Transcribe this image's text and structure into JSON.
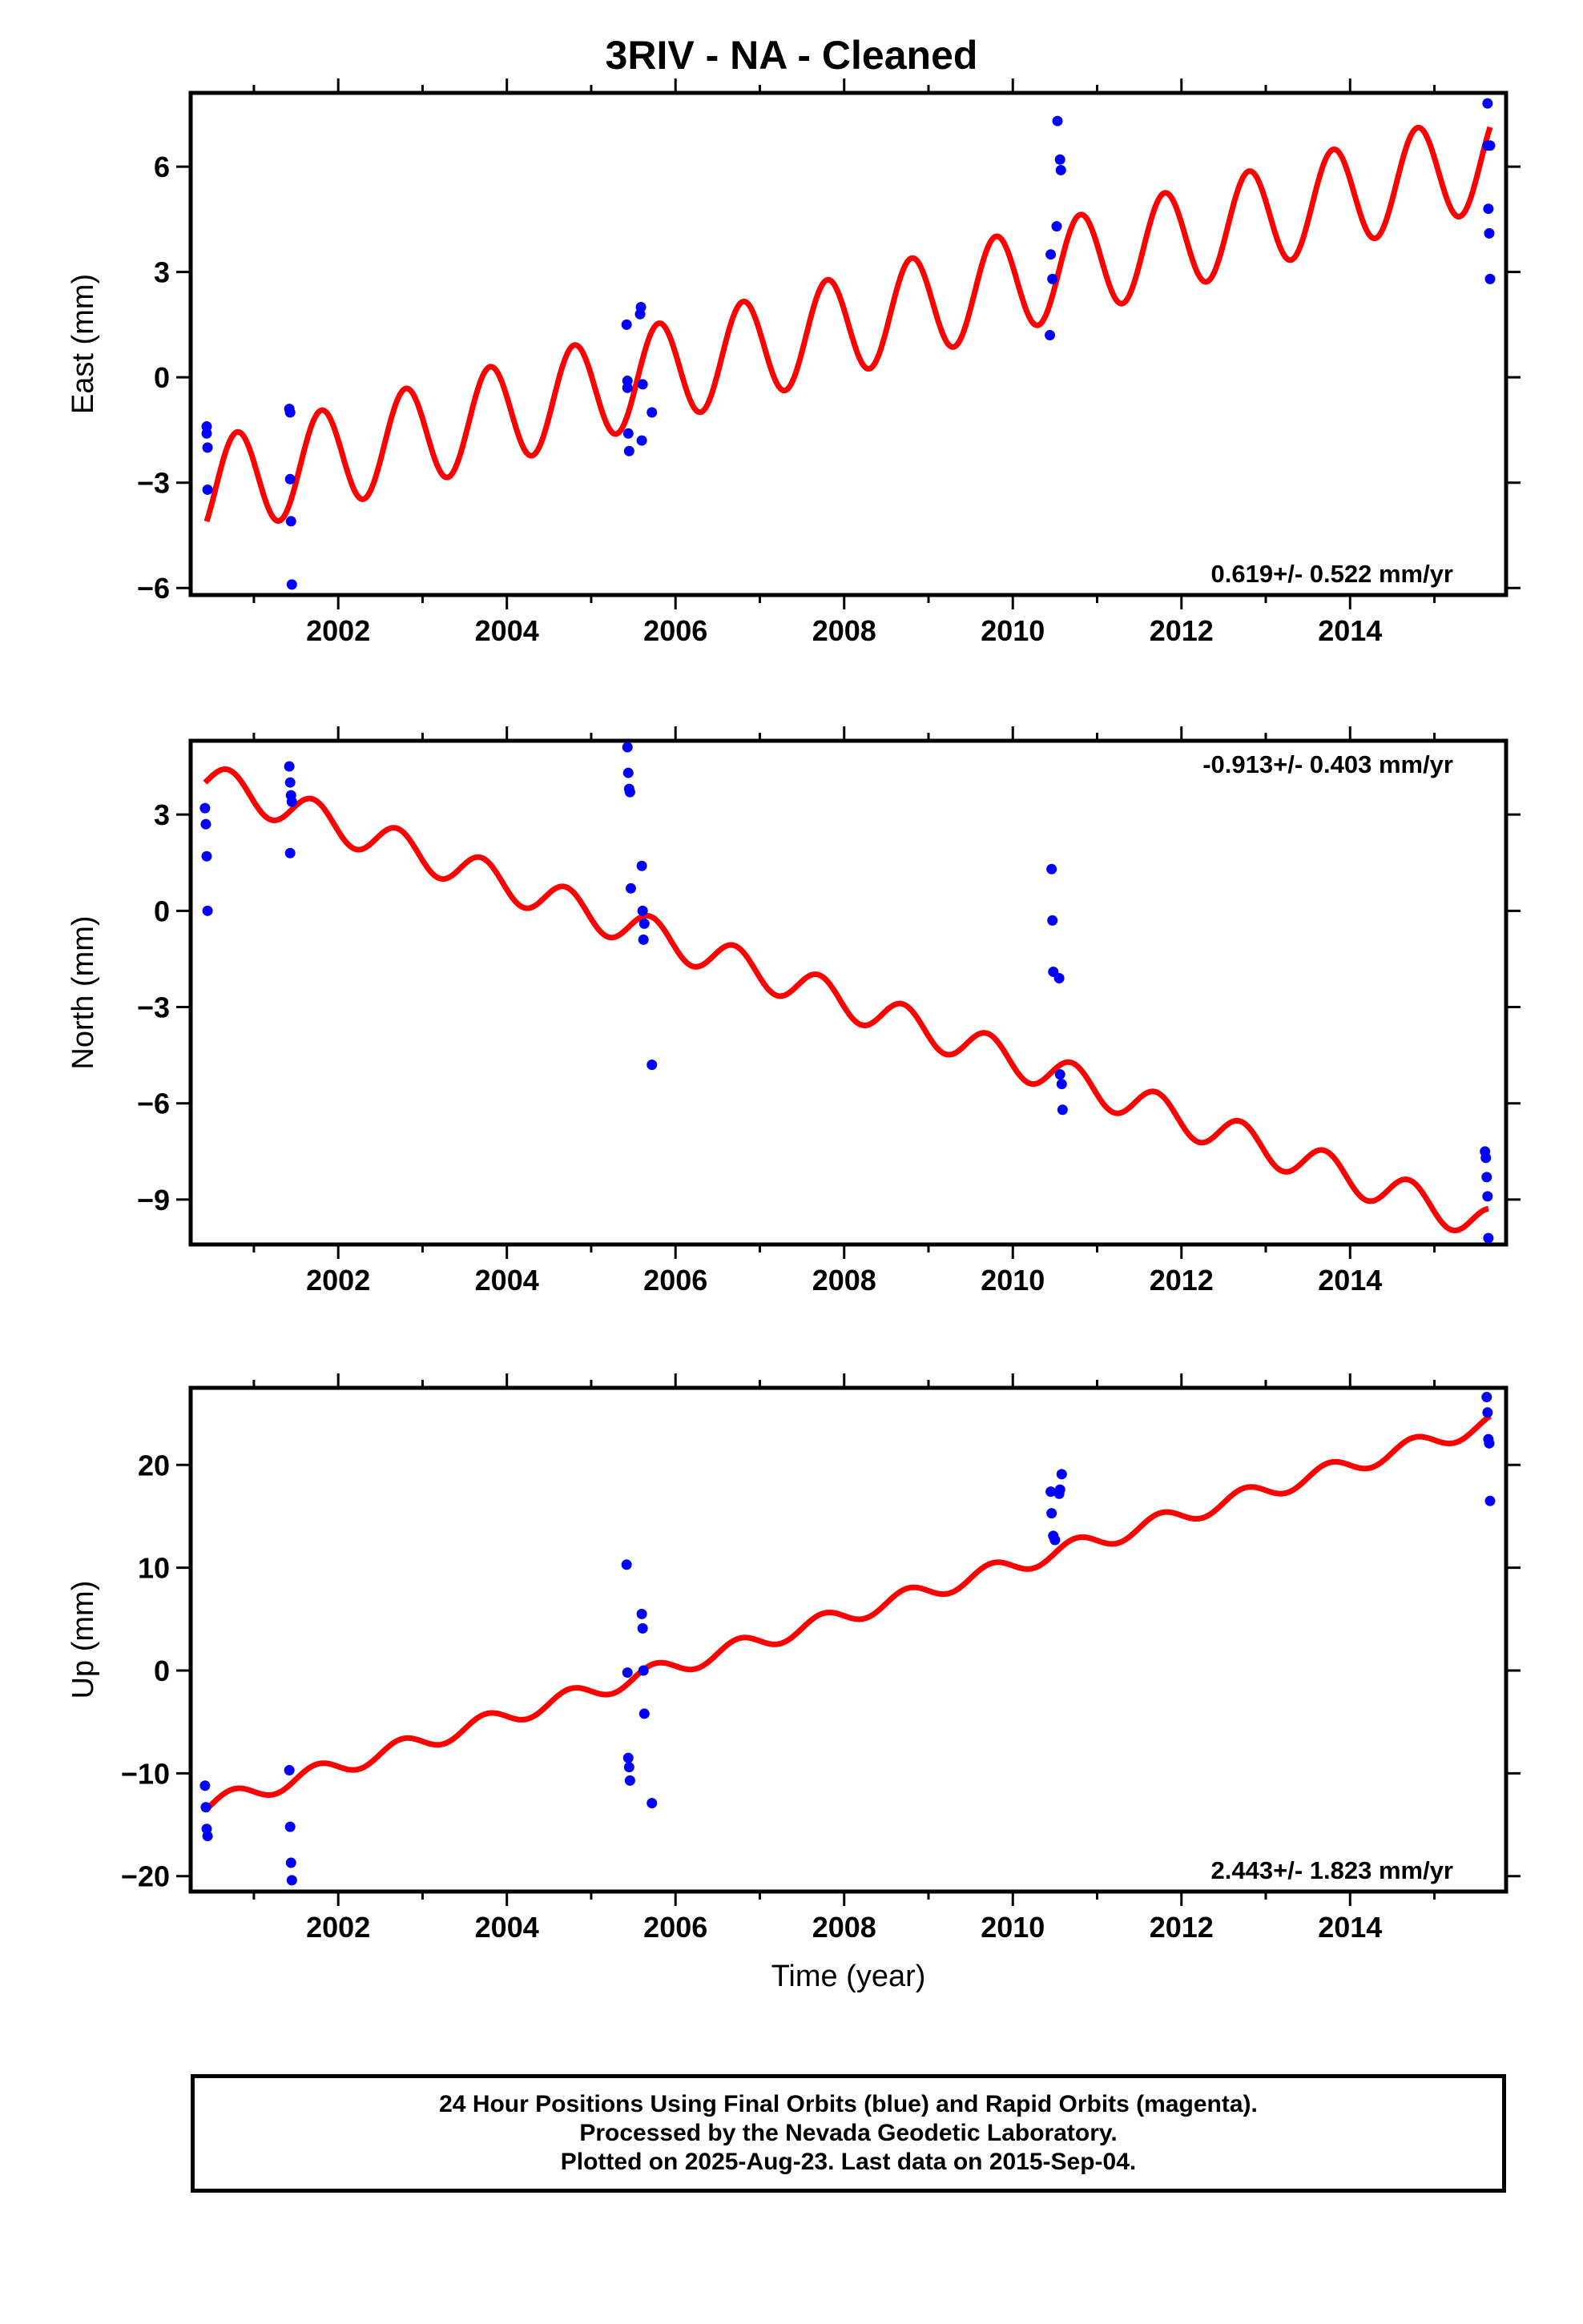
{
  "title": "3RIV  - NA - Cleaned",
  "colors": {
    "model": "#ff0000",
    "final_orbits": "#0000ff",
    "axis": "#000000",
    "background": "#ffffff"
  },
  "footer": {
    "line1": "24 Hour Positions Using Final Orbits (blue) and Rapid Orbits (magenta).",
    "line2": "Processed by the Nevada Geodetic Laboratory.",
    "line3": "Plotted on 2025-Aug-23. Last data on 2015-Sep-04."
  },
  "chart_data": [
    {
      "type": "scatter",
      "panel": "east",
      "ylabel": "East (mm)",
      "xlabel": "",
      "xlim": [
        2000.25,
        2015.85
      ],
      "ylim": [
        -6.2,
        8.1
      ],
      "xticks": [
        2002,
        2004,
        2006,
        2008,
        2010,
        2012,
        2014
      ],
      "yticks": [
        -6,
        -3,
        0,
        3,
        6
      ],
      "rate_label": "0.619+/- 0.522 mm/yr",
      "rate_position": "bottom-right",
      "model": {
        "offset": -3.2,
        "rate": 0.619,
        "annual_amp": 1.42,
        "phase_year": 0.55,
        "period": 1.0
      },
      "observations": {
        "x": [
          2000.44,
          2000.44,
          2000.45,
          2000.45,
          2001.42,
          2001.43,
          2001.43,
          2001.44,
          2001.45,
          2005.42,
          2005.43,
          2005.43,
          2005.44,
          2005.45,
          2005.58,
          2005.59,
          2005.6,
          2005.61,
          2005.72,
          2010.44,
          2010.45,
          2010.47,
          2010.52,
          2010.53,
          2010.56,
          2010.57,
          2015.63,
          2015.63,
          2015.64,
          2015.65,
          2015.66,
          2015.66
        ],
        "y": [
          -1.4,
          -1.6,
          -2.0,
          -3.2,
          -0.9,
          -1.0,
          -2.9,
          -4.1,
          -5.9,
          1.5,
          -0.1,
          -0.3,
          -1.6,
          -2.1,
          1.8,
          2.0,
          -1.8,
          -0.2,
          -1.0,
          1.2,
          3.5,
          2.8,
          4.3,
          7.3,
          6.2,
          5.9,
          7.8,
          6.6,
          4.8,
          4.1,
          2.8,
          6.6
        ]
      }
    },
    {
      "type": "scatter",
      "panel": "north",
      "ylabel": "North (mm)",
      "xlabel": "",
      "xlim": [
        2000.25,
        2015.85
      ],
      "ylim": [
        -10.4,
        5.3
      ],
      "xticks": [
        2002,
        2004,
        2006,
        2008,
        2010,
        2012,
        2014
      ],
      "yticks": [
        -9,
        -6,
        -3,
        0,
        3
      ],
      "rate_label": "-0.913+/- 0.403 mm/yr",
      "rate_position": "top-right",
      "model": {
        "offset": 4.1,
        "rate": -0.913,
        "annual_amp": 0.55,
        "phase_year": 0.45,
        "period": 1.0
      },
      "observations": {
        "x": [
          2000.42,
          2000.43,
          2000.44,
          2000.45,
          2001.42,
          2001.43,
          2001.44,
          2001.45,
          2001.43,
          2005.43,
          2005.44,
          2005.45,
          2005.46,
          2005.47,
          2005.6,
          2005.61,
          2005.62,
          2005.63,
          2005.72,
          2010.46,
          2010.47,
          2010.48,
          2010.55,
          2010.56,
          2010.58,
          2010.59,
          2015.6,
          2015.61,
          2015.62,
          2015.63,
          2015.64
        ],
        "y": [
          3.2,
          2.7,
          1.7,
          0.0,
          4.5,
          4.0,
          3.6,
          3.4,
          1.8,
          5.1,
          4.3,
          3.8,
          3.7,
          0.7,
          1.4,
          0.0,
          -0.9,
          -0.4,
          -4.8,
          1.3,
          -0.3,
          -1.9,
          -2.1,
          -5.1,
          -5.4,
          -6.2,
          -7.5,
          -7.7,
          -8.3,
          -8.9,
          -10.2
        ]
      }
    },
    {
      "type": "scatter",
      "panel": "up",
      "ylabel": "Up (mm)",
      "xlabel": "Time (year)",
      "xlim": [
        2000.25,
        2015.85
      ],
      "ylim": [
        -21.5,
        27.5
      ],
      "xticks": [
        2002,
        2004,
        2006,
        2008,
        2010,
        2012,
        2014
      ],
      "yticks": [
        -20,
        -10,
        0,
        10,
        20
      ],
      "rate_label": "2.443+/- 1.823 mm/yr",
      "rate_position": "bottom-right",
      "model": {
        "offset": -13.2,
        "rate": 2.443,
        "annual_amp": 0.85,
        "phase_year": 0.5,
        "period": 1.0
      },
      "observations": {
        "x": [
          2000.42,
          2000.43,
          2000.44,
          2000.45,
          2001.42,
          2001.43,
          2001.44,
          2001.45,
          2005.42,
          2005.43,
          2005.44,
          2005.45,
          2005.46,
          2005.6,
          2005.61,
          2005.62,
          2005.63,
          2005.72,
          2010.45,
          2010.46,
          2010.48,
          2010.5,
          2010.55,
          2010.56,
          2010.58,
          2015.62,
          2015.63,
          2015.64,
          2015.65,
          2015.66
        ],
        "y": [
          -11.2,
          -13.3,
          -15.4,
          -16.1,
          -9.7,
          -15.2,
          -18.7,
          -20.4,
          10.3,
          -0.2,
          -8.5,
          -9.4,
          -10.7,
          5.5,
          4.1,
          0.0,
          -4.2,
          -12.9,
          17.4,
          15.3,
          13.1,
          12.7,
          17.2,
          17.6,
          19.1,
          26.6,
          25.1,
          22.5,
          22.1,
          16.5
        ]
      }
    }
  ]
}
